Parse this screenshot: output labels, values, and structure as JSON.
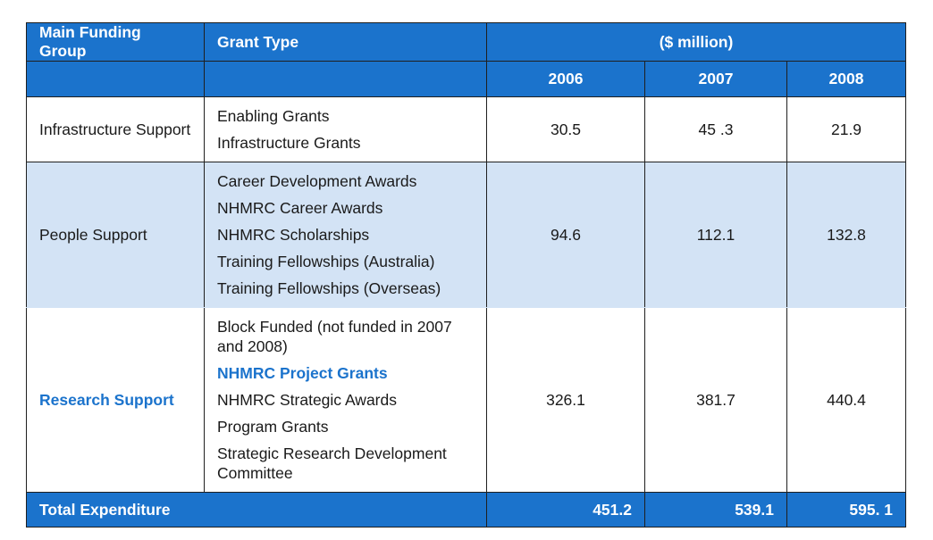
{
  "header": {
    "col_group": "Main Funding Group",
    "col_grant": "Grant Type",
    "unit": "($ million)",
    "years": [
      "2006",
      "2007",
      "2008"
    ]
  },
  "rows": [
    {
      "group": "Infrastructure Support",
      "grants": [
        "Enabling Grants",
        "Infrastructure Grants"
      ],
      "values": [
        "30.5",
        "45 .3",
        "21.9"
      ]
    },
    {
      "group": "People Support",
      "grants": [
        "Career Development Awards",
        "NHMRC Career Awards",
        "NHMRC Scholarships",
        "Training Fellowships (Australia)",
        "Training Fellowships (Overseas)"
      ],
      "values": [
        "94.6",
        "112.1",
        "132.8"
      ]
    },
    {
      "group": "Research Support",
      "grants": [
        "Block Funded (not funded in 2007 and 2008)",
        "NHMRC Project Grants",
        "NHMRC Strategic Awards",
        "Program Grants",
        "Strategic Research Development Committee"
      ],
      "values": [
        "326.1",
        "381.7",
        "440.4"
      ]
    }
  ],
  "total": {
    "label": "Total Expenditure",
    "values": [
      "451.2",
      "539.1",
      "595. 1"
    ]
  },
  "colors": {
    "header_bg": "#1b73cc",
    "band_bg": "#d3e3f5",
    "highlight": "#1b73cc"
  }
}
